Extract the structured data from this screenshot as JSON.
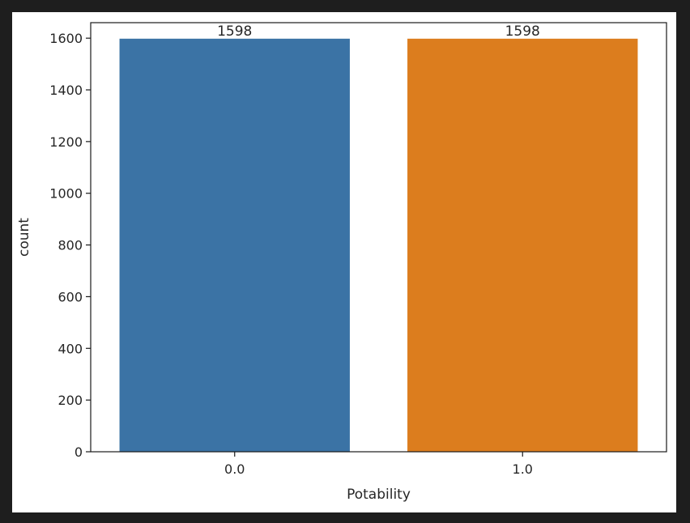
{
  "chart_data": {
    "type": "bar",
    "categories": [
      "0.0",
      "1.0"
    ],
    "values": [
      1598,
      1598
    ],
    "data_labels": [
      "1598",
      "1598"
    ],
    "colors": [
      "#3b73a5",
      "#dc7d1e"
    ],
    "xlabel": "Potability",
    "ylabel": "count",
    "ylim": [
      0,
      1660
    ],
    "yticks": [
      0,
      200,
      400,
      600,
      800,
      1000,
      1200,
      1400,
      1600
    ],
    "grid": false,
    "legend": "none"
  }
}
